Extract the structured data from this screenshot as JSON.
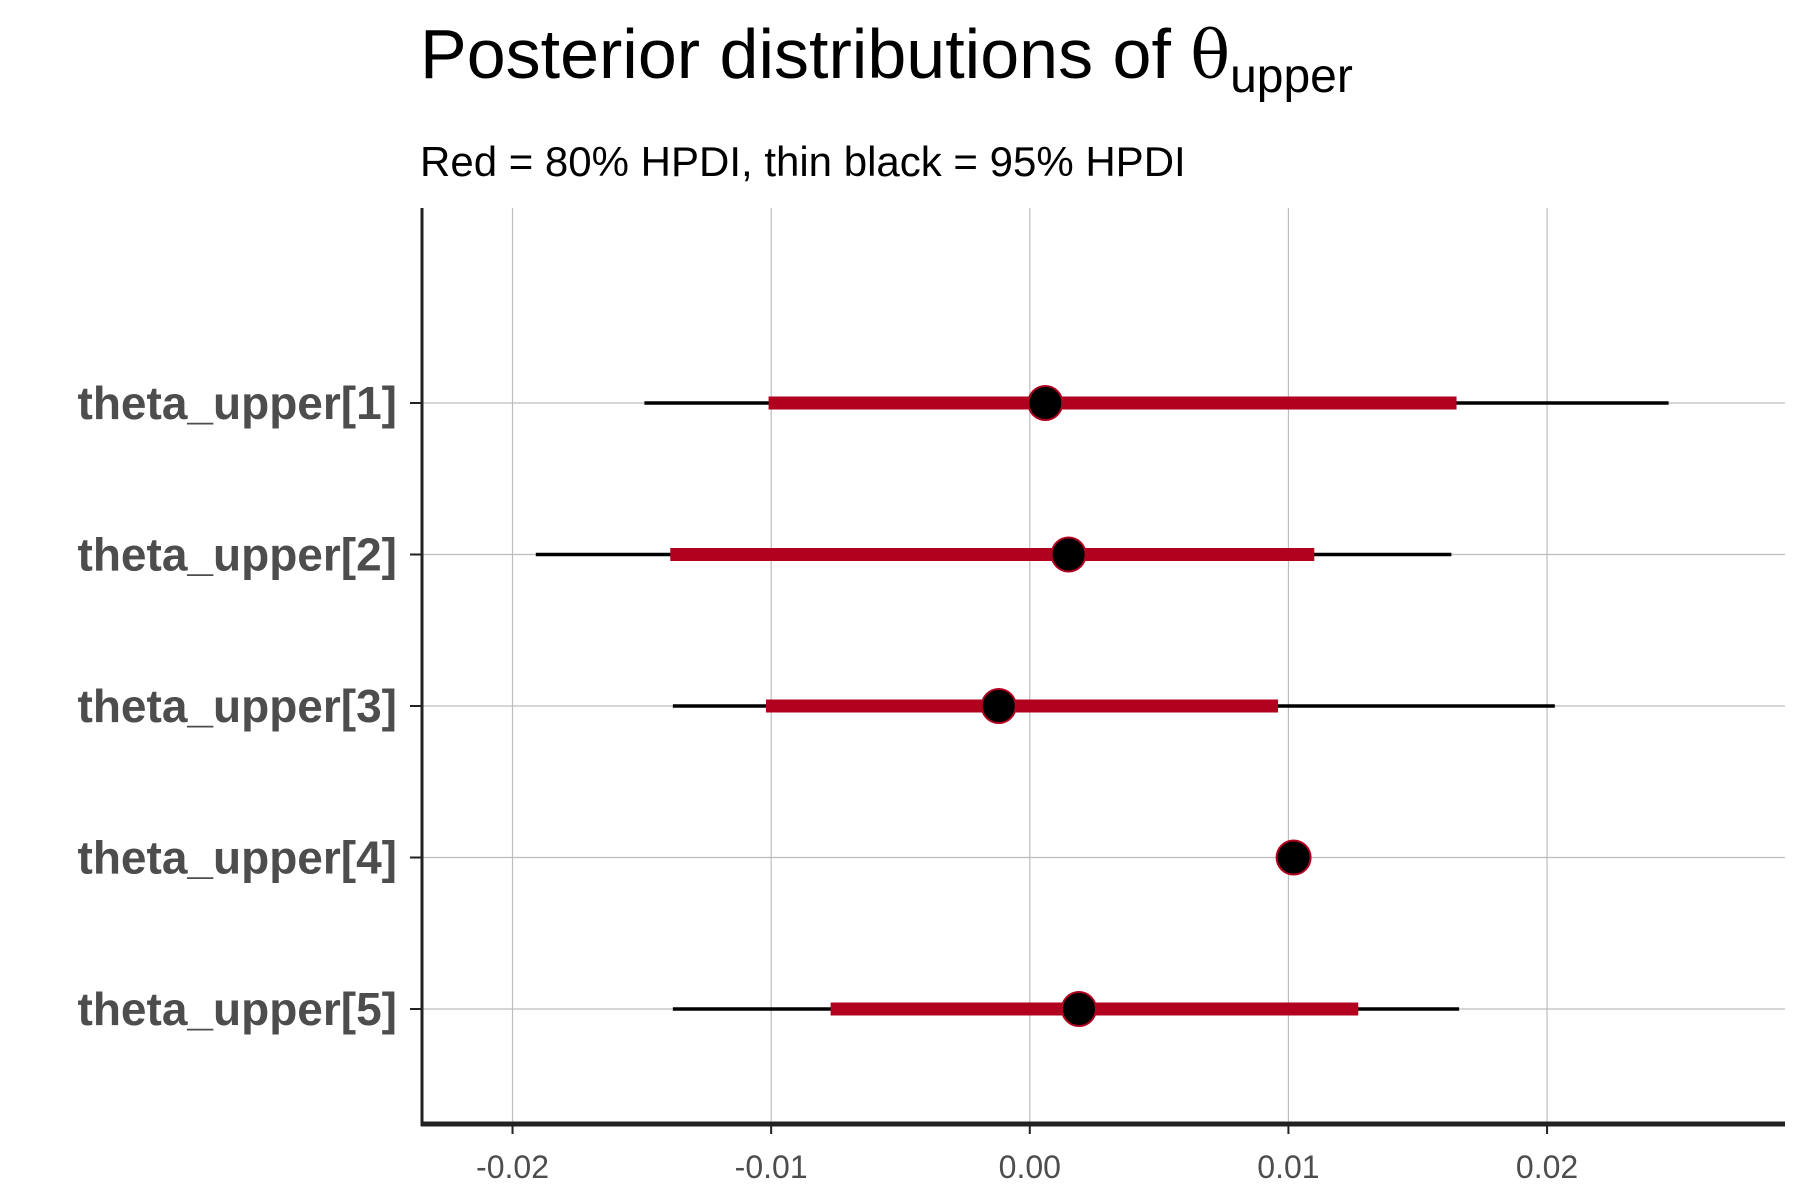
{
  "title": {
    "prefix": "Posterior distributions of ",
    "symbol": "θ",
    "subscript": "upper"
  },
  "subtitle": "Red = 80% HPDI, thin black = 95% HPDI",
  "colors": {
    "inner_interval": "#b2001f",
    "outer_interval": "#000000",
    "point": "#000000",
    "point_outline": "#b2001f",
    "grid": "#bdbdbd",
    "axis": "#222222",
    "label_text": "#4d4d4d"
  },
  "chart_data": {
    "type": "interval",
    "title": "Posterior distributions of θupper",
    "subtitle": "Red = 80% HPDI, thin black = 95% HPDI",
    "xlim": [
      -0.0235,
      0.0292
    ],
    "x_ticks": [
      -0.02,
      -0.01,
      0.0,
      0.01,
      0.02
    ],
    "x_tick_labels": [
      "-0.02",
      "-0.01",
      "0.00",
      "0.01",
      "0.02"
    ],
    "grid": true,
    "series": [
      {
        "label": "theta_upper[1]",
        "point": 0.0006,
        "hpdi80": [
          -0.0101,
          0.0165
        ],
        "hpdi95": [
          -0.0149,
          0.0247
        ]
      },
      {
        "label": "theta_upper[2]",
        "point": 0.0015,
        "hpdi80": [
          -0.0139,
          0.011
        ],
        "hpdi95": [
          -0.0191,
          0.0163
        ]
      },
      {
        "label": "theta_upper[3]",
        "point": -0.0012,
        "hpdi80": [
          -0.0102,
          0.0096
        ],
        "hpdi95": [
          -0.0138,
          0.0203
        ]
      },
      {
        "label": "theta_upper[4]",
        "point": 0.0102,
        "hpdi80": [
          0.0102,
          0.0102
        ],
        "hpdi95": [
          0.0102,
          0.0102
        ]
      },
      {
        "label": "theta_upper[5]",
        "point": 0.0019,
        "hpdi80": [
          -0.0077,
          0.0127
        ],
        "hpdi95": [
          -0.0138,
          0.0166
        ]
      }
    ]
  }
}
